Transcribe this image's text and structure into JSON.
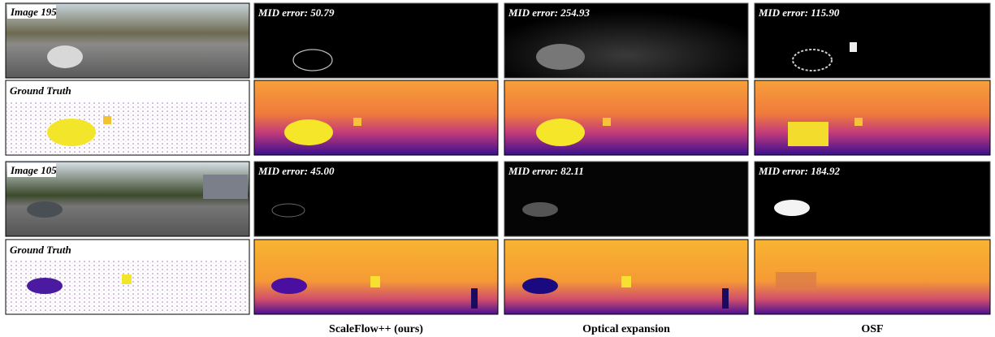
{
  "rows": [
    {
      "label": "Image 195",
      "errors": [
        "MID error: 50.79",
        "MID error: 254.93",
        "MID error: 115.90"
      ]
    },
    {
      "label": "Ground Truth"
    },
    {
      "label": "Image 105",
      "errors": [
        "MID error: 45.00",
        "MID error: 82.11",
        "MID error: 184.92"
      ]
    },
    {
      "label": "Ground Truth"
    }
  ],
  "columns": [
    "ScaleFlow++ (ours)",
    "Optical expansion",
    "OSF"
  ]
}
